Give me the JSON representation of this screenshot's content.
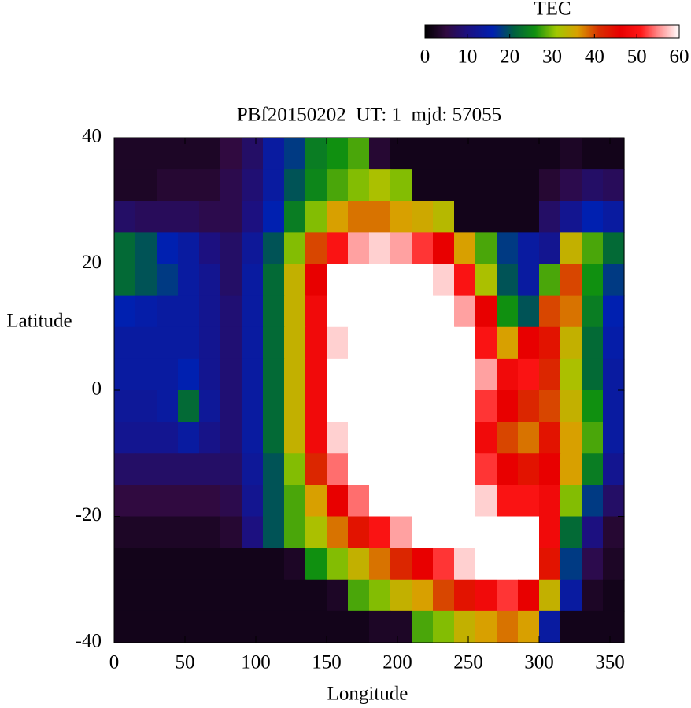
{
  "chart_data": {
    "type": "heatmap",
    "title": "PBf20150202  UT: 1  mjd: 57055",
    "xlabel": "Longitude",
    "ylabel": "Latitude",
    "colorbar_label": "TEC",
    "xlim": [
      0,
      360
    ],
    "xticks": [
      0,
      50,
      100,
      150,
      200,
      250,
      300,
      350
    ],
    "ylim": [
      -40,
      40
    ],
    "yticks": [
      -40,
      -20,
      0,
      20,
      40
    ],
    "clim": [
      0,
      60
    ],
    "cticks": [
      0,
      10,
      20,
      30,
      40,
      50,
      60
    ],
    "colormap": [
      {
        "value": 0,
        "color": "#000000"
      },
      {
        "value": 5,
        "color": "#300a40"
      },
      {
        "value": 10,
        "color": "#1c1080"
      },
      {
        "value": 16,
        "color": "#0020b0"
      },
      {
        "value": 21,
        "color": "#006040"
      },
      {
        "value": 26,
        "color": "#109010"
      },
      {
        "value": 31,
        "color": "#a0c800"
      },
      {
        "value": 36,
        "color": "#d8a000"
      },
      {
        "value": 41,
        "color": "#d83000"
      },
      {
        "value": 46,
        "color": "#e80000"
      },
      {
        "value": 51,
        "color": "#ff1818"
      },
      {
        "value": 55,
        "color": "#ff8a8a"
      },
      {
        "value": 60,
        "color": "#ffffff"
      }
    ],
    "x": [
      7.5,
      22.5,
      37.5,
      52.5,
      67.5,
      82.5,
      97.5,
      112.5,
      127.5,
      142.5,
      157.5,
      172.5,
      187.5,
      202.5,
      217.5,
      232.5,
      247.5,
      262.5,
      277.5,
      292.5,
      307.5,
      322.5,
      337.5,
      352.5
    ],
    "y": [
      37.5,
      32.5,
      27.5,
      22.5,
      17.5,
      12.5,
      7.5,
      2.5,
      -2.5,
      -7.5,
      -12.5,
      -17.5,
      -22.5,
      -27.5,
      -32.5,
      -37.5
    ],
    "z": [
      [
        3,
        3,
        3,
        3,
        3,
        5,
        8,
        14,
        18,
        24,
        26,
        28,
        4,
        2,
        2,
        2,
        2,
        2,
        2,
        2,
        2,
        3,
        2,
        2
      ],
      [
        3,
        3,
        4,
        4,
        4,
        6,
        9,
        14,
        20,
        25,
        28,
        30,
        32,
        30,
        2,
        2,
        2,
        2,
        2,
        2,
        4,
        6,
        8,
        7
      ],
      [
        8,
        7,
        7,
        7,
        6,
        6,
        10,
        16,
        24,
        30,
        36,
        38,
        38,
        36,
        35,
        33,
        2,
        2,
        2,
        2,
        8,
        12,
        16,
        14
      ],
      [
        22,
        20,
        16,
        14,
        10,
        8,
        13,
        20,
        30,
        40,
        50,
        56,
        58,
        56,
        52,
        46,
        36,
        28,
        18,
        14,
        12,
        34,
        28,
        22
      ],
      [
        22,
        20,
        18,
        14,
        12,
        8,
        14,
        22,
        34,
        46,
        60,
        60,
        60,
        60,
        60,
        58,
        50,
        32,
        20,
        14,
        28,
        40,
        26,
        18
      ],
      [
        16,
        15,
        14,
        14,
        12,
        9,
        14,
        22,
        34,
        48,
        60,
        60,
        60,
        60,
        60,
        60,
        56,
        46,
        26,
        20,
        40,
        38,
        24,
        16
      ],
      [
        14,
        14,
        14,
        14,
        12,
        9,
        14,
        22,
        34,
        48,
        58,
        60,
        60,
        60,
        60,
        60,
        60,
        50,
        36,
        46,
        44,
        34,
        22,
        15
      ],
      [
        14,
        14,
        14,
        16,
        12,
        9,
        14,
        22,
        34,
        48,
        60,
        60,
        60,
        60,
        60,
        60,
        60,
        56,
        48,
        50,
        42,
        32,
        22,
        14
      ],
      [
        13,
        13,
        14,
        22,
        13,
        9,
        14,
        22,
        34,
        48,
        60,
        60,
        60,
        60,
        60,
        60,
        60,
        52,
        46,
        42,
        40,
        34,
        26,
        14
      ],
      [
        12,
        12,
        12,
        14,
        11,
        9,
        14,
        22,
        34,
        48,
        58,
        60,
        60,
        60,
        60,
        60,
        60,
        48,
        40,
        38,
        44,
        36,
        28,
        14
      ],
      [
        8,
        8,
        8,
        8,
        8,
        8,
        13,
        20,
        30,
        42,
        54,
        60,
        60,
        60,
        60,
        60,
        60,
        52,
        46,
        44,
        46,
        36,
        24,
        12
      ],
      [
        5,
        5,
        5,
        5,
        5,
        6,
        12,
        20,
        28,
        36,
        46,
        54,
        60,
        60,
        60,
        60,
        60,
        58,
        50,
        50,
        48,
        30,
        18,
        8
      ],
      [
        3,
        3,
        3,
        3,
        3,
        4,
        10,
        20,
        28,
        32,
        38,
        44,
        50,
        56,
        60,
        60,
        60,
        60,
        60,
        60,
        48,
        22,
        10,
        4
      ],
      [
        2,
        2,
        2,
        2,
        2,
        2,
        2,
        2,
        3,
        26,
        30,
        34,
        38,
        42,
        46,
        52,
        58,
        60,
        60,
        60,
        44,
        18,
        6,
        3
      ],
      [
        2,
        2,
        2,
        2,
        2,
        2,
        2,
        2,
        2,
        2,
        3,
        28,
        30,
        34,
        36,
        40,
        44,
        48,
        52,
        46,
        34,
        14,
        3,
        2
      ],
      [
        2,
        2,
        2,
        2,
        2,
        2,
        2,
        2,
        2,
        2,
        2,
        2,
        3,
        3,
        28,
        30,
        34,
        36,
        38,
        36,
        14,
        2,
        2,
        2
      ]
    ]
  }
}
